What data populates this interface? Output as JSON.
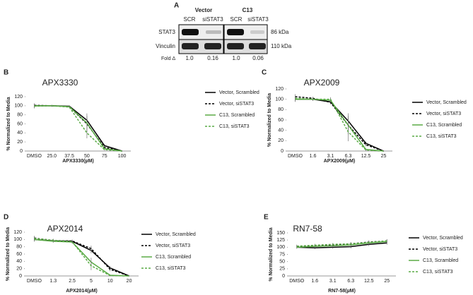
{
  "blot": {
    "panel": "A",
    "groups": [
      "Vector",
      "C13"
    ],
    "lanes": [
      "SCR",
      "siSTAT3",
      "SCR",
      "siSTAT3"
    ],
    "rows": [
      {
        "label": "STAT3",
        "size": "86 kDa"
      },
      {
        "label": "Vinculin",
        "size": "110 kDa"
      }
    ],
    "fold_label": "Fold Δ",
    "fold_values": [
      "1.0",
      "0.16",
      "1.0",
      "0.06"
    ]
  },
  "chart_data": [
    {
      "type": "line",
      "panel": "B",
      "title": "APX3330",
      "x_label": "APX3330(µM)",
      "y_label": "% Normalized to Media",
      "categories": [
        "DMSO",
        "25.0",
        "37.5",
        "50",
        "75",
        "100"
      ],
      "ylim": [
        0,
        120
      ],
      "yticks": [
        0,
        20,
        40,
        60,
        80,
        100,
        120
      ],
      "series": [
        {
          "name": "Vector, Scrambled",
          "color": "#000000",
          "dash": false,
          "values": [
            100,
            100,
            99,
            68,
            12,
            0
          ],
          "errors": [
            5,
            2,
            2,
            15,
            3,
            1
          ]
        },
        {
          "name": "Vector, siSTAT3",
          "color": "#000000",
          "dash": true,
          "values": [
            101,
            100,
            98,
            60,
            8,
            0
          ],
          "errors": [
            4,
            2,
            2,
            18,
            3,
            1
          ]
        },
        {
          "name": "C13, Scrambled",
          "color": "#5aab46",
          "dash": false,
          "values": [
            100,
            100,
            98,
            62,
            5,
            0
          ],
          "errors": [
            4,
            2,
            2,
            15,
            2,
            1
          ]
        },
        {
          "name": "C13, siSTAT3",
          "color": "#5aab46",
          "dash": true,
          "values": [
            99,
            100,
            97,
            40,
            3,
            0
          ],
          "errors": [
            5,
            2,
            2,
            12,
            2,
            1
          ]
        }
      ]
    },
    {
      "type": "line",
      "panel": "C",
      "title": "APX2009",
      "x_label": "APX2009(µM)",
      "y_label": "% Normalized to Media",
      "categories": [
        "DMSO",
        "1.6",
        "3.1",
        "6.3",
        "12.5",
        "25"
      ],
      "ylim": [
        0,
        120
      ],
      "yticks": [
        0,
        20,
        40,
        60,
        80,
        100,
        120
      ],
      "series": [
        {
          "name": "Vector, Scrambled",
          "color": "#000000",
          "dash": false,
          "values": [
            100,
            100,
            95,
            58,
            15,
            0
          ],
          "errors": [
            5,
            3,
            4,
            15,
            3,
            1
          ]
        },
        {
          "name": "Vector, siSTAT3",
          "color": "#000000",
          "dash": true,
          "values": [
            105,
            102,
            94,
            50,
            12,
            0
          ],
          "errors": [
            5,
            3,
            4,
            18,
            3,
            1
          ]
        },
        {
          "name": "C13, Scrambled",
          "color": "#5aab46",
          "dash": false,
          "values": [
            100,
            100,
            98,
            50,
            3,
            0
          ],
          "errors": [
            4,
            3,
            4,
            15,
            2,
            1
          ]
        },
        {
          "name": "C13, siSTAT3",
          "color": "#5aab46",
          "dash": true,
          "values": [
            102,
            100,
            100,
            37,
            2,
            0
          ],
          "errors": [
            4,
            3,
            4,
            18,
            2,
            1
          ]
        }
      ]
    },
    {
      "type": "line",
      "panel": "D",
      "title": "APX2014",
      "x_label": "APX2014(µM)",
      "y_label": "% Normalized to Media",
      "categories": [
        "DMSO",
        "1.3",
        "2.5",
        "5",
        "10",
        "20"
      ],
      "ylim": [
        0,
        120
      ],
      "yticks": [
        0,
        20,
        40,
        60,
        80,
        100,
        120
      ],
      "series": [
        {
          "name": "Vector, Scrambled",
          "color": "#000000",
          "dash": false,
          "values": [
            100,
            96,
            95,
            70,
            22,
            0
          ],
          "errors": [
            6,
            4,
            4,
            8,
            5,
            1
          ]
        },
        {
          "name": "Vector, siSTAT3",
          "color": "#000000",
          "dash": true,
          "values": [
            104,
            97,
            96,
            75,
            18,
            0
          ],
          "errors": [
            6,
            4,
            4,
            8,
            5,
            1
          ]
        },
        {
          "name": "C13, Scrambled",
          "color": "#5aab46",
          "dash": false,
          "values": [
            100,
            95,
            93,
            38,
            2,
            0
          ],
          "errors": [
            5,
            4,
            4,
            12,
            2,
            1
          ]
        },
        {
          "name": "C13, siSTAT3",
          "color": "#5aab46",
          "dash": true,
          "values": [
            103,
            98,
            94,
            28,
            1,
            0
          ],
          "errors": [
            5,
            4,
            4,
            12,
            2,
            1
          ]
        }
      ]
    },
    {
      "type": "line",
      "panel": "E",
      "title": "RN7-58",
      "x_label": "RN7-58(µM)",
      "y_label": "% Normalized to Media",
      "categories": [
        "DMSO",
        "1.6",
        "3.1",
        "6.3",
        "12.5",
        "25"
      ],
      "ylim": [
        0,
        150
      ],
      "yticks": [
        0,
        25,
        50,
        75,
        100,
        125,
        150
      ],
      "series": [
        {
          "name": "Vector, Scrambled",
          "color": "#000000",
          "dash": false,
          "values": [
            100,
            98,
            100,
            102,
            110,
            115
          ],
          "errors": [
            5,
            5,
            5,
            6,
            6,
            6
          ]
        },
        {
          "name": "Vector, siSTAT3",
          "color": "#000000",
          "dash": true,
          "values": [
            103,
            105,
            108,
            112,
            118,
            122
          ],
          "errors": [
            5,
            5,
            5,
            6,
            6,
            6
          ]
        },
        {
          "name": "C13, Scrambled",
          "color": "#5aab46",
          "dash": false,
          "values": [
            100,
            103,
            105,
            108,
            115,
            120
          ],
          "errors": [
            5,
            5,
            5,
            6,
            6,
            6
          ]
        },
        {
          "name": "C13, siSTAT3",
          "color": "#5aab46",
          "dash": true,
          "values": [
            104,
            107,
            110,
            112,
            117,
            122
          ],
          "errors": [
            5,
            5,
            5,
            6,
            6,
            6
          ]
        }
      ]
    }
  ]
}
